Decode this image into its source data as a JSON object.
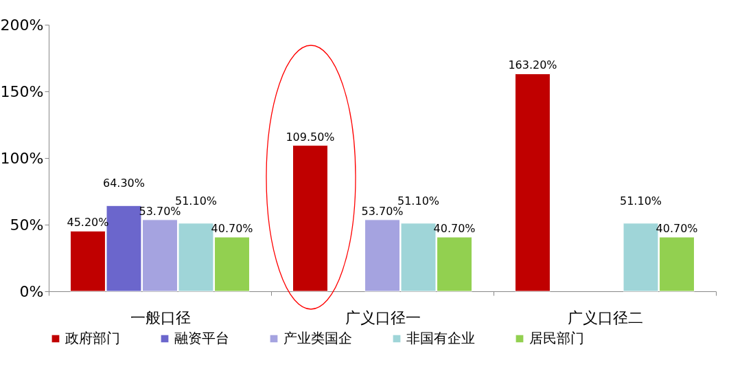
{
  "chart_data": {
    "type": "bar",
    "categories": [
      "一般口径",
      "广义口径一",
      "广义口径二"
    ],
    "ylim": [
      0,
      200
    ],
    "yticks": [
      {
        "value": 0,
        "label": "0%"
      },
      {
        "value": 50,
        "label": "50%"
      },
      {
        "value": 100,
        "label": "100%"
      },
      {
        "value": 150,
        "label": "150%"
      },
      {
        "value": 200,
        "label": "200%"
      }
    ],
    "grid": false,
    "legend": "bottom",
    "series": [
      {
        "name": "政府部门",
        "color": "#c00000",
        "values": [
          45.2,
          109.5,
          163.2
        ],
        "value_labels": [
          "45.20%",
          "109.50%",
          "163.20%"
        ]
      },
      {
        "name": "融资平台",
        "color": "#6b66cc",
        "values": [
          64.3,
          null,
          null
        ],
        "value_labels": [
          "64.30%",
          null,
          null
        ]
      },
      {
        "name": "产业类国企",
        "color": "#a5a3e0",
        "values": [
          53.7,
          53.7,
          null
        ],
        "value_labels": [
          "53.70%",
          "53.70%",
          null
        ]
      },
      {
        "name": "非国有企业",
        "color": "#9fd5d8",
        "values": [
          51.1,
          51.1,
          51.1
        ],
        "value_labels": [
          "51.10%",
          "51.10%",
          "51.10%"
        ]
      },
      {
        "name": "居民部门",
        "color": "#92d050",
        "values": [
          40.7,
          40.7,
          40.7
        ],
        "value_labels": [
          "40.70%",
          "40.70%",
          "40.70%"
        ]
      }
    ]
  }
}
